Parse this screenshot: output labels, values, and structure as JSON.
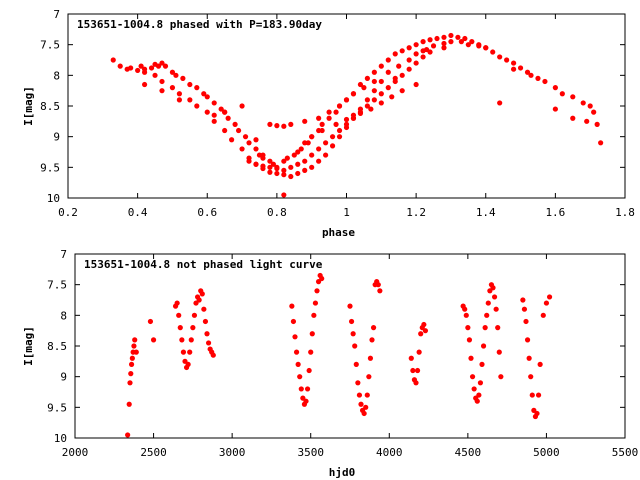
{
  "chart_data": [
    {
      "type": "scatter",
      "title": "153651-1004.8 phased with P=183.90day",
      "xlabel": "phase",
      "ylabel": "I[mag]",
      "xlim": [
        0.2,
        1.8
      ],
      "ylim": [
        10,
        7
      ],
      "y_inverted": true,
      "xticks": [
        "0.2",
        "0.4",
        "0.6",
        "0.8",
        "1",
        "1.2",
        "1.4",
        "1.6",
        "1.8"
      ],
      "xtick_values": [
        0.2,
        0.4,
        0.6,
        0.8,
        1.0,
        1.2,
        1.4,
        1.6,
        1.8
      ],
      "yticks": [
        "7",
        "7.5",
        "8",
        "8.5",
        "9",
        "9.5",
        "10"
      ],
      "ytick_values": [
        7,
        7.5,
        8,
        8.5,
        9,
        9.5,
        10
      ],
      "marker_color": "#ff0000",
      "series": [
        {
          "x": [
            0.33,
            0.35,
            0.37,
            0.38,
            0.4,
            0.41,
            0.42,
            0.44,
            0.45,
            0.46,
            0.47,
            0.48,
            0.5,
            0.51,
            0.53,
            0.55,
            0.57,
            0.59,
            0.6,
            0.62,
            0.64,
            0.65,
            0.66,
            0.68,
            0.69,
            0.71,
            0.72,
            0.74,
            0.75,
            0.76,
            0.78,
            0.79,
            0.8,
            0.82,
            0.83,
            0.85,
            0.86,
            0.87,
            0.89,
            0.9,
            0.92,
            0.93,
            0.95,
            0.97,
            0.98,
            1.0,
            1.02,
            1.04,
            1.06,
            1.08,
            1.1,
            1.12,
            1.14,
            1.16,
            1.18,
            1.2,
            1.22,
            1.24,
            1.26,
            1.28,
            1.3,
            1.32,
            1.34,
            1.36,
            1.38,
            1.4,
            1.42,
            1.44,
            1.46,
            1.48,
            1.5,
            1.52,
            1.55,
            1.57,
            1.6,
            1.62,
            1.65,
            1.68,
            1.7,
            1.71,
            1.72,
            1.73
          ],
          "y": [
            7.75,
            7.85,
            7.9,
            7.88,
            7.92,
            7.85,
            7.9,
            7.88,
            7.82,
            7.85,
            7.8,
            7.85,
            7.95,
            8.0,
            8.05,
            8.15,
            8.2,
            8.3,
            8.35,
            8.45,
            8.55,
            8.6,
            8.7,
            8.8,
            8.9,
            9.0,
            9.1,
            9.2,
            9.3,
            9.35,
            9.4,
            9.45,
            9.5,
            9.4,
            9.35,
            9.3,
            9.25,
            9.2,
            9.1,
            9.0,
            8.9,
            8.8,
            8.7,
            8.6,
            8.5,
            8.4,
            8.3,
            8.15,
            8.05,
            7.95,
            7.85,
            7.75,
            7.65,
            7.6,
            7.55,
            7.5,
            7.45,
            7.42,
            7.4,
            7.38,
            7.35,
            7.38,
            7.4,
            7.45,
            7.5,
            7.55,
            7.62,
            7.7,
            7.75,
            7.8,
            7.88,
            7.95,
            8.05,
            8.1,
            8.2,
            8.3,
            8.35,
            8.45,
            8.5,
            8.6,
            8.8,
            9.1
          ]
        },
        {
          "x": [
            0.42,
            0.45,
            0.47,
            0.5,
            0.52,
            0.55,
            0.57,
            0.6,
            0.62,
            0.65,
            0.67,
            0.7,
            0.72,
            0.74,
            0.76,
            0.78,
            0.8,
            0.82,
            0.84,
            0.86,
            0.88,
            0.9,
            0.92,
            0.94,
            0.96,
            0.98,
            1.0,
            1.02,
            1.04,
            1.06,
            1.08,
            1.1,
            1.12,
            1.15,
            1.18,
            1.2,
            1.23,
            1.25,
            1.28,
            1.3,
            1.33,
            1.35,
            1.38,
            1.4
          ],
          "y": [
            7.95,
            8.0,
            8.1,
            8.2,
            8.3,
            8.4,
            8.5,
            8.6,
            8.75,
            8.9,
            9.05,
            9.2,
            9.35,
            9.45,
            9.52,
            9.58,
            9.6,
            9.62,
            9.65,
            9.6,
            9.55,
            9.5,
            9.4,
            9.3,
            9.15,
            9.0,
            8.85,
            8.7,
            8.55,
            8.4,
            8.25,
            8.1,
            7.95,
            7.85,
            7.75,
            7.65,
            7.58,
            7.52,
            7.48,
            7.45,
            7.45,
            7.5,
            7.52,
            7.55
          ]
        },
        {
          "x": [
            0.72,
            0.74,
            0.76,
            0.78,
            0.8,
            0.82,
            0.84,
            0.86,
            0.88,
            0.9,
            0.92,
            0.94,
            0.96,
            0.98,
            1.0,
            1.02,
            1.04,
            1.06,
            1.08,
            1.1,
            1.12,
            1.14,
            1.16,
            1.18,
            1.2,
            1.22,
            1.24
          ],
          "y": [
            9.4,
            9.45,
            9.48,
            9.5,
            9.52,
            9.55,
            9.5,
            9.45,
            9.4,
            9.3,
            9.2,
            9.1,
            9.0,
            8.9,
            8.8,
            8.7,
            8.6,
            8.5,
            8.4,
            8.3,
            8.2,
            8.1,
            8.0,
            7.9,
            7.8,
            7.7,
            7.62
          ]
        },
        {
          "x": [
            0.42,
            0.47,
            0.52,
            0.62,
            0.65,
            0.7,
            0.74,
            0.76,
            0.78,
            0.8,
            0.82,
            0.84,
            0.88,
            0.92,
            0.95,
            0.98,
            1.0,
            1.02,
            1.05,
            1.08,
            1.14,
            1.22,
            1.28,
            1.44,
            1.48,
            1.53
          ],
          "y": [
            8.15,
            8.25,
            8.4,
            8.65,
            8.6,
            8.5,
            9.05,
            9.3,
            8.8,
            8.82,
            8.83,
            8.8,
            8.75,
            8.7,
            8.6,
            8.5,
            8.4,
            8.3,
            8.2,
            8.1,
            8.05,
            7.6,
            7.55,
            8.45,
            7.9,
            8.0
          ]
        },
        {
          "x": [
            0.82,
            0.88,
            0.9,
            0.93,
            0.97,
            1.0,
            1.02,
            1.04,
            1.07,
            1.1,
            1.13,
            1.16,
            1.2,
            1.6,
            1.65,
            1.69
          ],
          "y": [
            9.95,
            9.1,
            9.0,
            8.9,
            8.8,
            8.72,
            8.65,
            8.62,
            8.55,
            8.45,
            8.35,
            8.25,
            8.15,
            8.55,
            8.7,
            8.75
          ]
        }
      ]
    },
    {
      "type": "scatter",
      "title": "153651-1004.8 not phased light curve",
      "xlabel": "hjd0",
      "ylabel": "I[mag]",
      "xlim": [
        2000,
        5500
      ],
      "ylim": [
        10,
        7
      ],
      "y_inverted": true,
      "xticks": [
        "2000",
        "2500",
        "3000",
        "3500",
        "4000",
        "4500",
        "5000",
        "5500"
      ],
      "xtick_values": [
        2000,
        2500,
        3000,
        3500,
        4000,
        4500,
        5000,
        5500
      ],
      "yticks": [
        "7",
        "7.5",
        "8",
        "8.5",
        "9",
        "9.5",
        "10"
      ],
      "ytick_values": [
        7,
        7.5,
        8,
        8.5,
        9,
        9.5,
        10
      ],
      "marker_color": "#ff0000",
      "series": [
        {
          "x": [
            2335,
            2345,
            2350,
            2355,
            2360,
            2365,
            2370,
            2375,
            2380,
            2390,
            2480,
            2500,
            2640,
            2650,
            2660,
            2670,
            2680,
            2690,
            2700,
            2710,
            2720,
            2730,
            2740,
            2750,
            2760,
            2770,
            2780,
            2790,
            2800,
            2810,
            2820,
            2830,
            2840,
            2850,
            2860,
            2870,
            2880
          ],
          "y": [
            9.95,
            9.45,
            9.1,
            8.95,
            8.8,
            8.7,
            8.6,
            8.5,
            8.4,
            8.6,
            8.1,
            8.4,
            7.85,
            7.8,
            8.0,
            8.2,
            8.4,
            8.6,
            8.75,
            8.85,
            8.8,
            8.6,
            8.4,
            8.2,
            8.0,
            7.8,
            7.7,
            7.75,
            7.6,
            7.65,
            7.9,
            8.1,
            8.3,
            8.45,
            8.55,
            8.6,
            8.65
          ]
        },
        {
          "x": [
            3380,
            3390,
            3400,
            3410,
            3420,
            3430,
            3440,
            3450,
            3460,
            3470,
            3480,
            3490,
            3500,
            3510,
            3520,
            3530,
            3540,
            3550,
            3560,
            3570
          ],
          "y": [
            7.85,
            8.1,
            8.35,
            8.6,
            8.8,
            9.0,
            9.2,
            9.35,
            9.45,
            9.4,
            9.2,
            8.9,
            8.6,
            8.3,
            8.0,
            7.8,
            7.6,
            7.45,
            7.35,
            7.4
          ]
        },
        {
          "x": [
            3750,
            3760,
            3770,
            3780,
            3790,
            3800,
            3810,
            3820,
            3830,
            3840,
            3850,
            3860,
            3870,
            3880,
            3890,
            3900,
            3910,
            3920,
            3930,
            3940
          ],
          "y": [
            7.85,
            8.1,
            8.3,
            8.5,
            8.8,
            9.1,
            9.3,
            9.45,
            9.55,
            9.6,
            9.5,
            9.3,
            9.0,
            8.7,
            8.4,
            8.2,
            7.5,
            7.45,
            7.5,
            7.6
          ]
        },
        {
          "x": [
            4140,
            4150,
            4160,
            4170,
            4180,
            4190,
            4200,
            4210,
            4220,
            4230
          ],
          "y": [
            8.7,
            8.9,
            9.05,
            9.1,
            8.9,
            8.6,
            8.3,
            8.2,
            8.15,
            8.25
          ]
        },
        {
          "x": [
            4470,
            4480,
            4490,
            4500,
            4510,
            4520,
            4530,
            4540,
            4550,
            4560,
            4570,
            4580,
            4590,
            4600,
            4610,
            4620,
            4630,
            4640,
            4650,
            4660,
            4670,
            4680,
            4690,
            4700,
            4710
          ],
          "y": [
            7.85,
            7.9,
            8.0,
            8.2,
            8.4,
            8.7,
            9.0,
            9.2,
            9.35,
            9.4,
            9.3,
            9.1,
            8.8,
            8.5,
            8.2,
            8.0,
            7.8,
            7.6,
            7.5,
            7.55,
            7.7,
            7.9,
            8.2,
            8.6,
            9.0
          ]
        },
        {
          "x": [
            4850,
            4860,
            4870,
            4880,
            4890,
            4900,
            4910,
            4920,
            4930,
            4940,
            4950,
            4960,
            4980,
            5000,
            5020
          ],
          "y": [
            7.75,
            7.9,
            8.1,
            8.4,
            8.7,
            9.0,
            9.3,
            9.55,
            9.65,
            9.6,
            9.3,
            8.8,
            8.0,
            7.8,
            7.7
          ]
        }
      ]
    }
  ]
}
